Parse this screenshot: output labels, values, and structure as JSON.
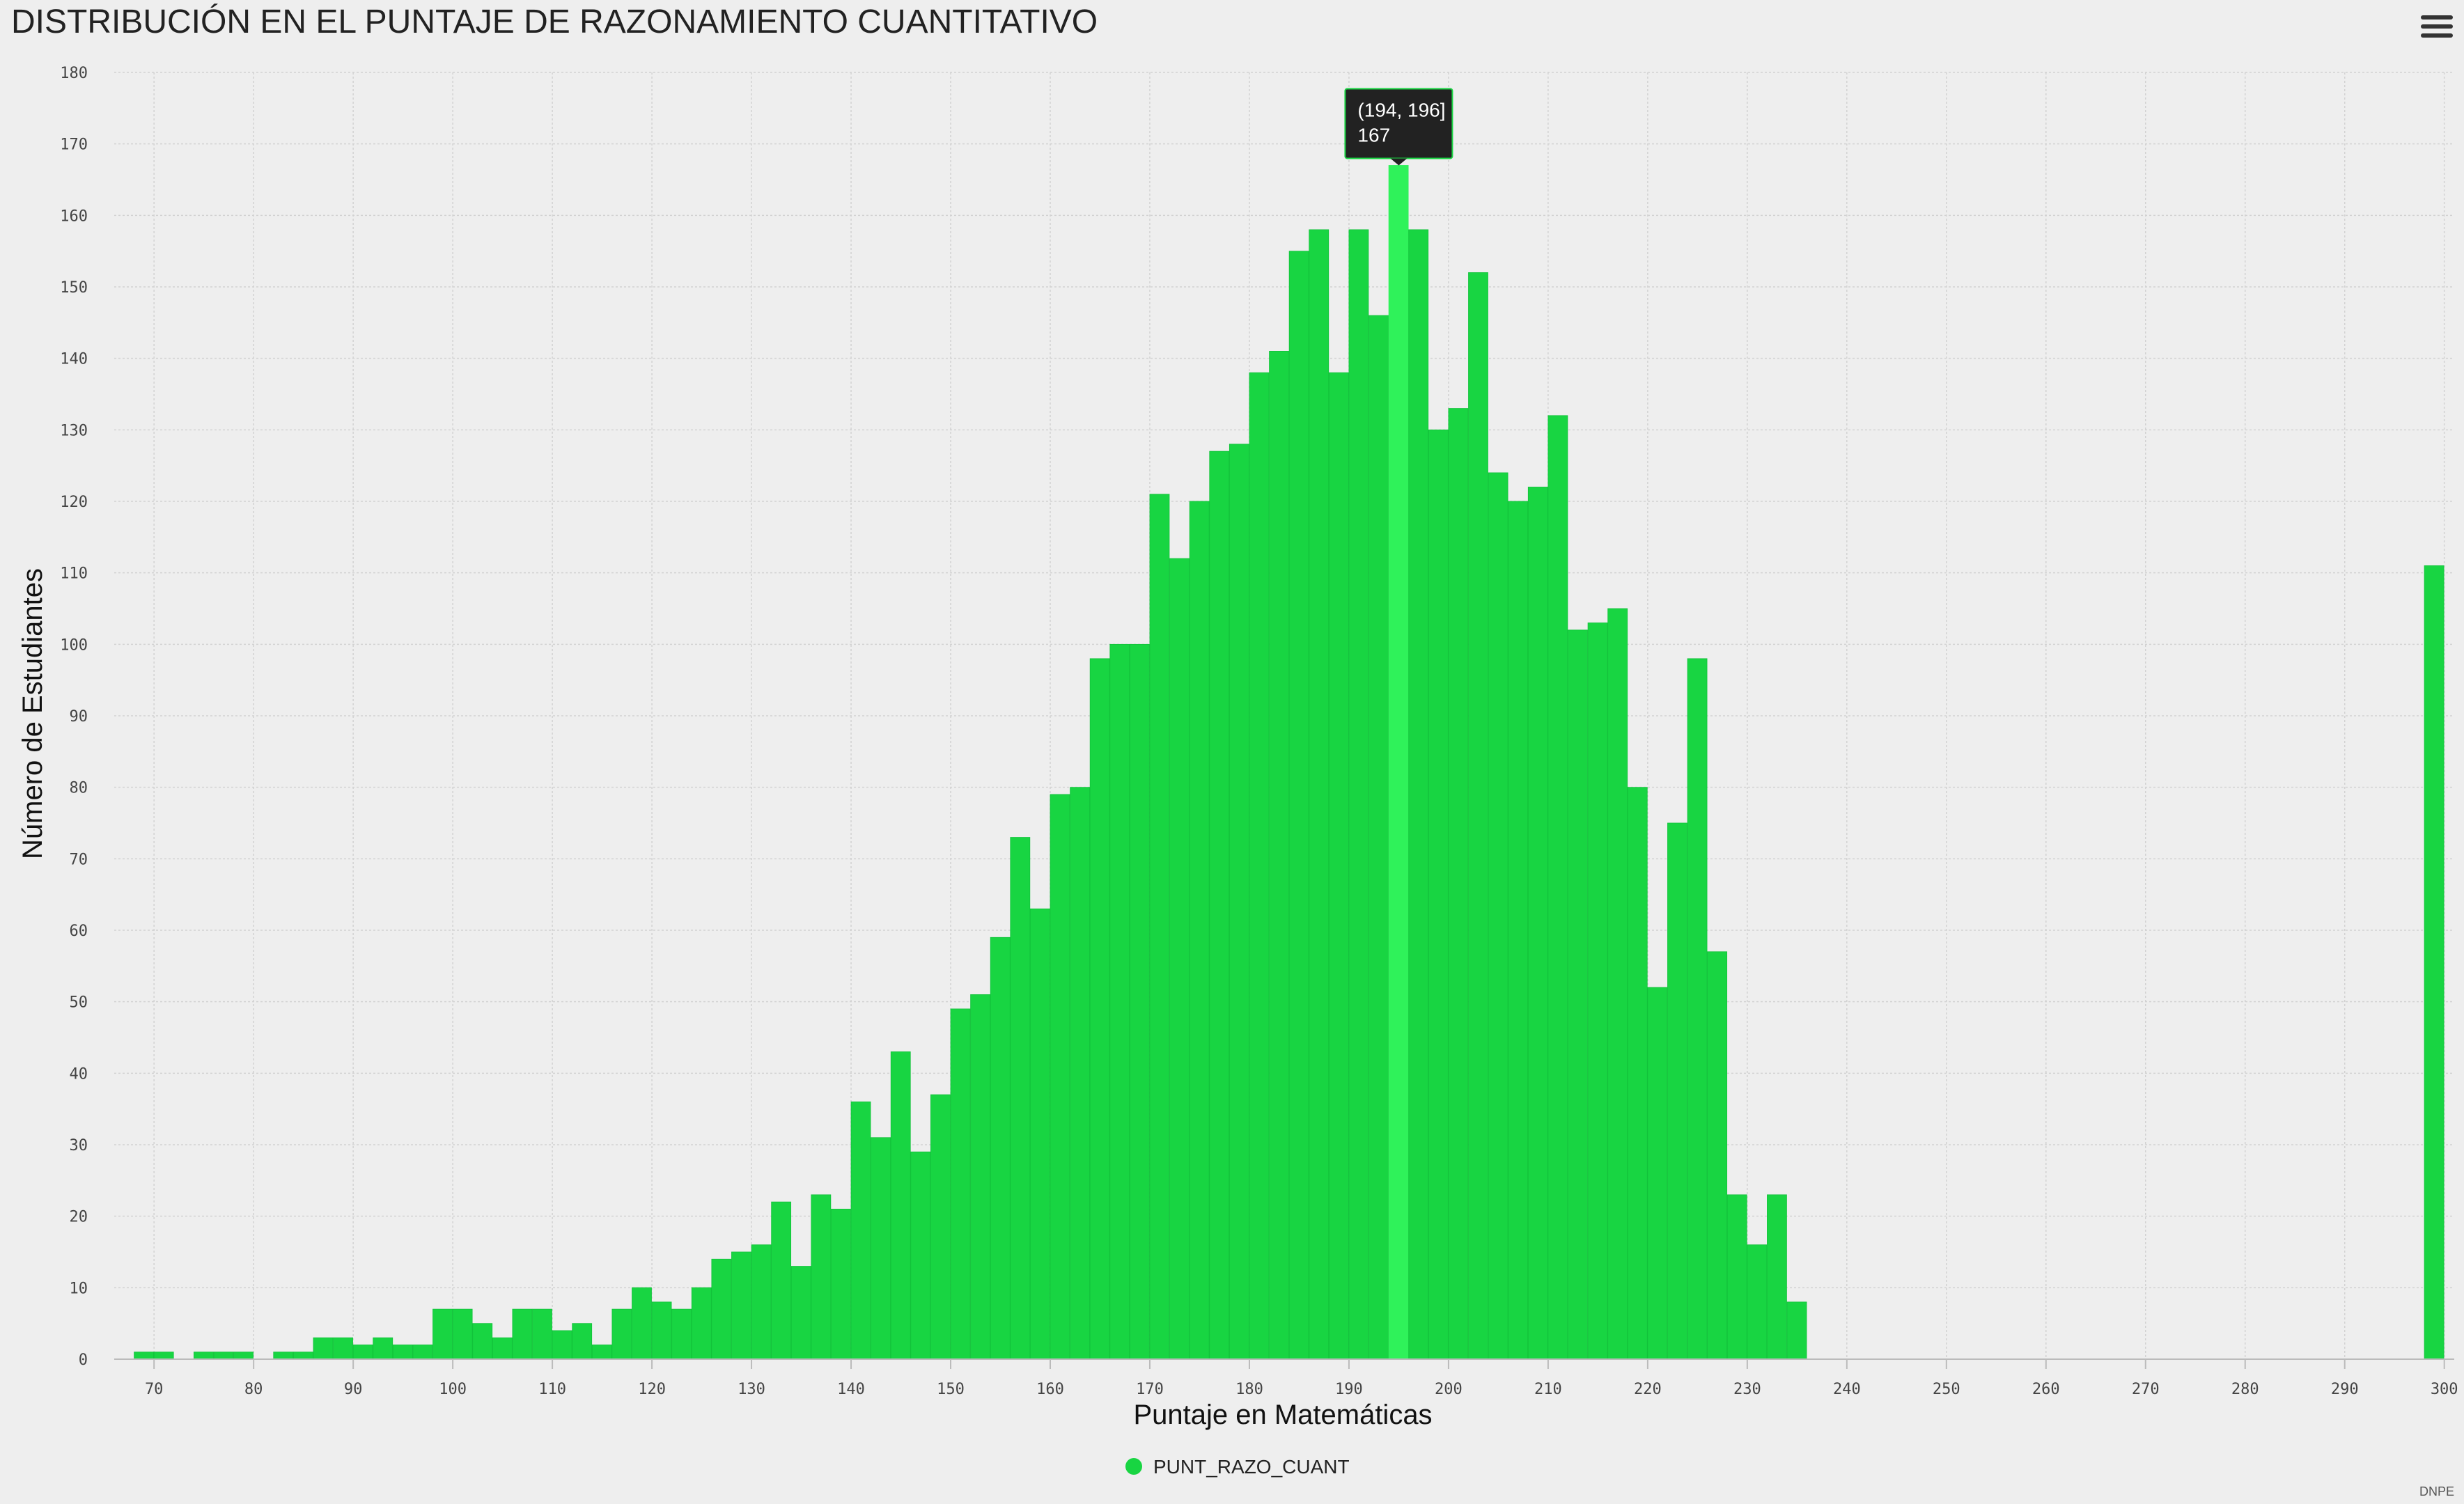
{
  "header": {
    "title": "DISTRIBUCIÓN EN EL PUNTAJE DE RAZONAMIENTO CUANTITATIVO",
    "menu_icon": "hamburger-menu-icon"
  },
  "credit": "DNPE",
  "tooltip": {
    "range": "(194, 196]",
    "value": "167"
  },
  "colors": {
    "bar": "#18d542",
    "bar_hover": "#2ff25a",
    "tooltip_bg": "#222222"
  },
  "chart_data": {
    "type": "bar",
    "title": "DISTRIBUCIÓN EN EL PUNTAJE DE RAZONAMIENTO CUANTITATIVO",
    "xlabel": "Puntaje en Matemáticas",
    "ylabel": "Número de Estudiantes",
    "xlim": [
      66,
      301
    ],
    "ylim": [
      0,
      180
    ],
    "xticks": [
      70,
      80,
      90,
      100,
      110,
      120,
      130,
      140,
      150,
      160,
      170,
      180,
      190,
      200,
      210,
      220,
      230,
      240,
      250,
      260,
      270,
      280,
      290,
      300
    ],
    "yticks": [
      0,
      10,
      20,
      30,
      40,
      50,
      60,
      70,
      80,
      90,
      100,
      110,
      120,
      130,
      140,
      150,
      160,
      170,
      180
    ],
    "grid": true,
    "legend": "bottom-center",
    "series": [
      {
        "name": "PUNT_RAZO_CUANT",
        "bin_width": 2,
        "bins": [
          [
            68,
            1
          ],
          [
            70,
            1
          ],
          [
            74,
            1
          ],
          [
            76,
            1
          ],
          [
            78,
            1
          ],
          [
            82,
            1
          ],
          [
            84,
            1
          ],
          [
            86,
            3
          ],
          [
            88,
            3
          ],
          [
            90,
            2
          ],
          [
            92,
            3
          ],
          [
            94,
            2
          ],
          [
            96,
            2
          ],
          [
            98,
            7
          ],
          [
            100,
            7
          ],
          [
            102,
            5
          ],
          [
            104,
            3
          ],
          [
            106,
            7
          ],
          [
            108,
            7
          ],
          [
            110,
            4
          ],
          [
            112,
            5
          ],
          [
            114,
            2
          ],
          [
            116,
            7
          ],
          [
            118,
            10
          ],
          [
            120,
            8
          ],
          [
            122,
            7
          ],
          [
            124,
            10
          ],
          [
            126,
            14
          ],
          [
            128,
            15
          ],
          [
            130,
            16
          ],
          [
            132,
            22
          ],
          [
            134,
            13
          ],
          [
            136,
            23
          ],
          [
            138,
            21
          ],
          [
            140,
            36
          ],
          [
            142,
            31
          ],
          [
            144,
            43
          ],
          [
            146,
            29
          ],
          [
            148,
            37
          ],
          [
            150,
            49
          ],
          [
            152,
            51
          ],
          [
            154,
            59
          ],
          [
            156,
            73
          ],
          [
            158,
            63
          ],
          [
            160,
            79
          ],
          [
            162,
            80
          ],
          [
            164,
            98
          ],
          [
            166,
            100
          ],
          [
            168,
            100
          ],
          [
            170,
            121
          ],
          [
            172,
            112
          ],
          [
            174,
            120
          ],
          [
            176,
            127
          ],
          [
            178,
            128
          ],
          [
            180,
            138
          ],
          [
            182,
            141
          ],
          [
            184,
            155
          ],
          [
            186,
            158
          ],
          [
            188,
            138
          ],
          [
            190,
            158
          ],
          [
            192,
            146
          ],
          [
            194,
            167
          ],
          [
            196,
            158
          ],
          [
            198,
            130
          ],
          [
            200,
            133
          ],
          [
            202,
            152
          ],
          [
            204,
            124
          ],
          [
            206,
            120
          ],
          [
            208,
            122
          ],
          [
            210,
            132
          ],
          [
            212,
            102
          ],
          [
            214,
            103
          ],
          [
            216,
            105
          ],
          [
            218,
            80
          ],
          [
            220,
            52
          ],
          [
            222,
            75
          ],
          [
            224,
            98
          ],
          [
            226,
            57
          ],
          [
            228,
            23
          ],
          [
            230,
            16
          ],
          [
            232,
            23
          ],
          [
            234,
            8
          ],
          [
            298,
            111
          ]
        ]
      }
    ]
  }
}
